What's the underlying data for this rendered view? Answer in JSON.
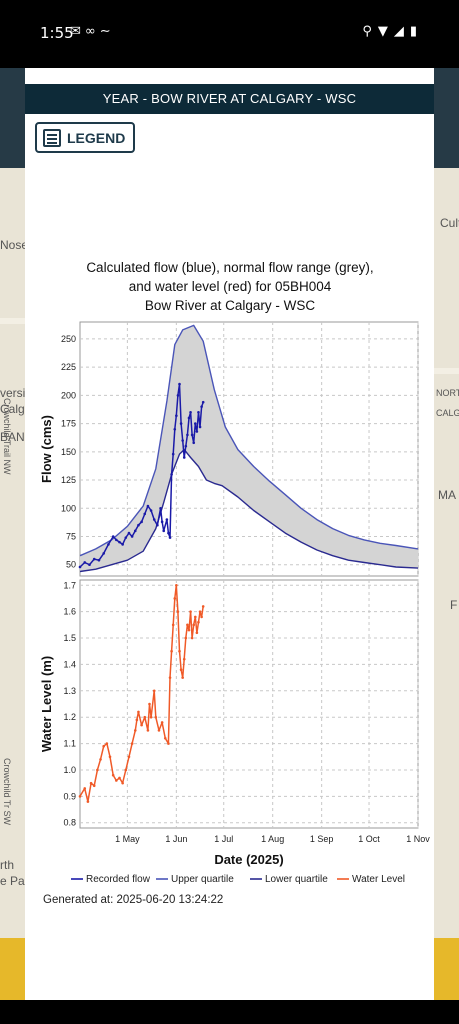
{
  "status_bar": {
    "time": "1:55"
  },
  "modal": {
    "header_title": "YEAR - BOW RIVER AT CALGARY - WSC",
    "legend_button_label": "LEGEND",
    "generated_at": "Generated at:  2025-06-20 13:24:22"
  },
  "map_labels": [
    "Nose",
    "Crowchild Trail NW",
    "Crowchild Tr SW",
    "NORTH",
    "CALGA",
    "MA",
    "F",
    "Cultu",
    "versi",
    "Calga",
    "BANK",
    "rth",
    "e Pa"
  ],
  "chart_data": {
    "type": "line",
    "title_lines": [
      "Calculated flow (blue), normal flow range (grey),",
      "and water level (red) for 05BH004",
      "Bow River at Calgary - WSC"
    ],
    "xlabel": "Date (2025)",
    "x_ticks": [
      "1 May",
      "1 Jun",
      "1 Jul",
      "1 Aug",
      "1 Sep",
      "1 Oct",
      "1 Nov"
    ],
    "x_tick_days": [
      30,
      61,
      91,
      122,
      153,
      183,
      214
    ],
    "x_range_days": [
      0,
      214
    ],
    "flow_panel": {
      "ylabel": "Flow (cms)",
      "ylim": [
        40,
        265
      ],
      "y_ticks": [
        50,
        75,
        100,
        125,
        150,
        175,
        200,
        225,
        250
      ],
      "upper_quartile": [
        [
          0,
          58
        ],
        [
          10,
          64
        ],
        [
          20,
          72
        ],
        [
          30,
          84
        ],
        [
          40,
          102
        ],
        [
          48,
          135
        ],
        [
          55,
          195
        ],
        [
          60,
          245
        ],
        [
          65,
          258
        ],
        [
          72,
          262
        ],
        [
          78,
          248
        ],
        [
          85,
          205
        ],
        [
          92,
          172
        ],
        [
          100,
          152
        ],
        [
          110,
          137
        ],
        [
          120,
          124
        ],
        [
          130,
          112
        ],
        [
          140,
          100
        ],
        [
          150,
          90
        ],
        [
          160,
          82
        ],
        [
          170,
          76
        ],
        [
          180,
          72
        ],
        [
          190,
          69
        ],
        [
          200,
          67
        ],
        [
          214,
          64
        ]
      ],
      "lower_quartile": [
        [
          0,
          44
        ],
        [
          10,
          46
        ],
        [
          20,
          50
        ],
        [
          30,
          54
        ],
        [
          40,
          62
        ],
        [
          48,
          82
        ],
        [
          53,
          105
        ],
        [
          58,
          130
        ],
        [
          63,
          148
        ],
        [
          66,
          152
        ],
        [
          70,
          145
        ],
        [
          75,
          137
        ],
        [
          80,
          125
        ],
        [
          85,
          122
        ],
        [
          90,
          120
        ],
        [
          100,
          110
        ],
        [
          110,
          98
        ],
        [
          120,
          88
        ],
        [
          130,
          78
        ],
        [
          140,
          70
        ],
        [
          150,
          63
        ],
        [
          160,
          58
        ],
        [
          170,
          54
        ],
        [
          180,
          52
        ],
        [
          190,
          50
        ],
        [
          200,
          48
        ],
        [
          214,
          47
        ]
      ],
      "recorded_flow": [
        [
          0,
          48
        ],
        [
          3,
          52
        ],
        [
          6,
          50
        ],
        [
          9,
          55
        ],
        [
          12,
          54
        ],
        [
          15,
          60
        ],
        [
          18,
          68
        ],
        [
          21,
          75
        ],
        [
          23,
          72
        ],
        [
          25,
          70
        ],
        [
          27,
          68
        ],
        [
          29,
          74
        ],
        [
          31,
          78
        ],
        [
          33,
          75
        ],
        [
          35,
          80
        ],
        [
          37,
          85
        ],
        [
          39,
          88
        ],
        [
          41,
          95
        ],
        [
          43,
          102
        ],
        [
          45,
          98
        ],
        [
          47,
          90
        ],
        [
          49,
          85
        ],
        [
          51,
          100
        ],
        [
          52,
          88
        ],
        [
          53,
          80
        ],
        [
          55,
          90
        ],
        [
          56,
          78
        ],
        [
          57,
          74
        ],
        [
          58,
          130
        ],
        [
          59,
          148
        ],
        [
          60,
          170
        ],
        [
          61,
          182
        ],
        [
          62,
          200
        ],
        [
          63,
          210
        ],
        [
          64,
          175
        ],
        [
          65,
          160
        ],
        [
          66,
          145
        ],
        [
          67,
          155
        ],
        [
          68,
          165
        ],
        [
          69,
          180
        ],
        [
          70,
          185
        ],
        [
          71,
          165
        ],
        [
          72,
          158
        ],
        [
          73,
          175
        ],
        [
          74,
          168
        ],
        [
          75,
          185
        ],
        [
          76,
          172
        ],
        [
          77,
          190
        ],
        [
          78,
          194
        ]
      ]
    },
    "level_panel": {
      "ylabel": "Water Level (m)",
      "ylim": [
        0.78,
        1.72
      ],
      "y_ticks": [
        0.8,
        0.9,
        1.0,
        1.1,
        1.2,
        1.3,
        1.4,
        1.5,
        1.6,
        1.7
      ],
      "water_level": [
        [
          0,
          0.9
        ],
        [
          3,
          0.93
        ],
        [
          5,
          0.88
        ],
        [
          7,
          0.95
        ],
        [
          9,
          0.94
        ],
        [
          11,
          1.0
        ],
        [
          13,
          1.04
        ],
        [
          15,
          1.09
        ],
        [
          17,
          1.1
        ],
        [
          19,
          1.05
        ],
        [
          21,
          0.98
        ],
        [
          23,
          0.96
        ],
        [
          25,
          0.97
        ],
        [
          27,
          0.95
        ],
        [
          29,
          1.0
        ],
        [
          31,
          1.05
        ],
        [
          33,
          1.1
        ],
        [
          35,
          1.15
        ],
        [
          36,
          1.19
        ],
        [
          37,
          1.22
        ],
        [
          39,
          1.17
        ],
        [
          41,
          1.2
        ],
        [
          43,
          1.15
        ],
        [
          44,
          1.25
        ],
        [
          45,
          1.2
        ],
        [
          47,
          1.3
        ],
        [
          48,
          1.2
        ],
        [
          50,
          1.15
        ],
        [
          52,
          1.18
        ],
        [
          54,
          1.12
        ],
        [
          56,
          1.1
        ],
        [
          57,
          1.35
        ],
        [
          58,
          1.45
        ],
        [
          59,
          1.55
        ],
        [
          60,
          1.65
        ],
        [
          61,
          1.7
        ],
        [
          62,
          1.6
        ],
        [
          63,
          1.45
        ],
        [
          64,
          1.38
        ],
        [
          65,
          1.35
        ],
        [
          66,
          1.42
        ],
        [
          67,
          1.5
        ],
        [
          68,
          1.55
        ],
        [
          69,
          1.53
        ],
        [
          70,
          1.6
        ],
        [
          71,
          1.5
        ],
        [
          72,
          1.55
        ],
        [
          73,
          1.58
        ],
        [
          74,
          1.52
        ],
        [
          75,
          1.56
        ],
        [
          76,
          1.6
        ],
        [
          77,
          1.58
        ],
        [
          78,
          1.62
        ]
      ]
    },
    "legend": [
      {
        "label": "Recorded flow",
        "color": "#1a1aa8"
      },
      {
        "label": "Upper quartile",
        "color": "#4a55b8"
      },
      {
        "label": "Lower quartile",
        "color": "#2a2a90"
      },
      {
        "label": "Water Level",
        "color": "#f05a28"
      }
    ],
    "grid": true,
    "range_fill_color": "#d4d4d4"
  }
}
